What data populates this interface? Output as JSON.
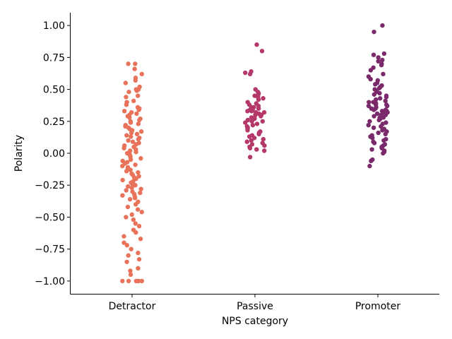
{
  "chart_data": {
    "type": "scatter",
    "subtype": "strip",
    "title": "",
    "xlabel": "NPS category",
    "ylabel": "Polarity",
    "ylim": [
      -1.1,
      1.1
    ],
    "yticks": [
      -1.0,
      -0.75,
      -0.5,
      -0.25,
      0.0,
      0.25,
      0.5,
      0.75,
      1.0
    ],
    "ytick_labels": [
      "−1.00",
      "−0.75",
      "−0.50",
      "−0.25",
      "0.00",
      "0.25",
      "0.50",
      "0.75",
      "1.00"
    ],
    "grid": false,
    "legend": "none",
    "categories": [
      "Detractor",
      "Passive",
      "Promoter"
    ],
    "series": [
      {
        "color": "#e8735a",
        "values": [
          0.7,
          0.7,
          0.66,
          0.62,
          0.59,
          0.57,
          0.55,
          0.52,
          0.5,
          0.5,
          0.49,
          0.48,
          0.45,
          0.44,
          0.41,
          0.4,
          0.38,
          0.36,
          0.35,
          0.34,
          0.33,
          0.32,
          0.31,
          0.3,
          0.29,
          0.28,
          0.27,
          0.26,
          0.25,
          0.24,
          0.23,
          0.22,
          0.21,
          0.2,
          0.19,
          0.18,
          0.17,
          0.16,
          0.15,
          0.14,
          0.13,
          0.12,
          0.11,
          0.1,
          0.09,
          0.08,
          0.07,
          0.06,
          0.05,
          0.04,
          0.03,
          0.02,
          0.01,
          0.0,
          -0.01,
          -0.02,
          -0.03,
          -0.04,
          -0.05,
          -0.06,
          -0.07,
          -0.08,
          -0.09,
          -0.1,
          -0.11,
          -0.12,
          -0.13,
          -0.14,
          -0.15,
          -0.16,
          -0.17,
          -0.18,
          -0.19,
          -0.2,
          -0.21,
          -0.22,
          -0.23,
          -0.24,
          -0.25,
          -0.26,
          -0.27,
          -0.28,
          -0.29,
          -0.3,
          -0.31,
          -0.32,
          -0.33,
          -0.34,
          -0.35,
          -0.36,
          -0.38,
          -0.4,
          -0.42,
          -0.44,
          -0.46,
          -0.48,
          -0.5,
          -0.52,
          -0.55,
          -0.57,
          -0.6,
          -0.62,
          -0.65,
          -0.67,
          -0.7,
          -0.72,
          -0.75,
          -0.78,
          -0.8,
          -0.83,
          -0.85,
          -0.9,
          -0.92,
          -0.95,
          -1.0,
          -1.0,
          -1.0,
          -1.0,
          -1.0,
          -1.0
        ]
      },
      {
        "color": "#b5386a",
        "values": [
          0.85,
          0.8,
          0.64,
          0.63,
          0.62,
          0.5,
          0.48,
          0.47,
          0.46,
          0.45,
          0.44,
          0.43,
          0.42,
          0.4,
          0.39,
          0.38,
          0.37,
          0.36,
          0.36,
          0.35,
          0.35,
          0.34,
          0.34,
          0.33,
          0.33,
          0.32,
          0.32,
          0.31,
          0.3,
          0.3,
          0.29,
          0.28,
          0.28,
          0.27,
          0.26,
          0.25,
          0.25,
          0.24,
          0.23,
          0.22,
          0.21,
          0.2,
          0.19,
          0.18,
          0.17,
          0.16,
          0.15,
          0.14,
          0.13,
          0.12,
          0.11,
          0.1,
          0.09,
          0.08,
          0.07,
          0.06,
          0.05,
          0.04,
          0.03,
          0.02,
          -0.03
        ]
      },
      {
        "color": "#7a2a6b",
        "values": [
          1.0,
          0.95,
          0.78,
          0.77,
          0.75,
          0.73,
          0.72,
          0.7,
          0.69,
          0.67,
          0.65,
          0.62,
          0.6,
          0.58,
          0.57,
          0.55,
          0.54,
          0.53,
          0.52,
          0.51,
          0.5,
          0.49,
          0.48,
          0.47,
          0.46,
          0.45,
          0.44,
          0.43,
          0.42,
          0.41,
          0.4,
          0.4,
          0.39,
          0.38,
          0.38,
          0.37,
          0.37,
          0.36,
          0.35,
          0.35,
          0.34,
          0.34,
          0.33,
          0.33,
          0.32,
          0.32,
          0.31,
          0.3,
          0.3,
          0.29,
          0.28,
          0.28,
          0.27,
          0.26,
          0.25,
          0.24,
          0.23,
          0.22,
          0.21,
          0.2,
          0.19,
          0.18,
          0.17,
          0.16,
          0.15,
          0.14,
          0.13,
          0.12,
          0.11,
          0.1,
          0.09,
          0.08,
          0.07,
          0.06,
          0.05,
          0.04,
          0.03,
          0.02,
          0.01,
          0.0,
          -0.05,
          -0.06,
          -0.1
        ]
      }
    ]
  }
}
